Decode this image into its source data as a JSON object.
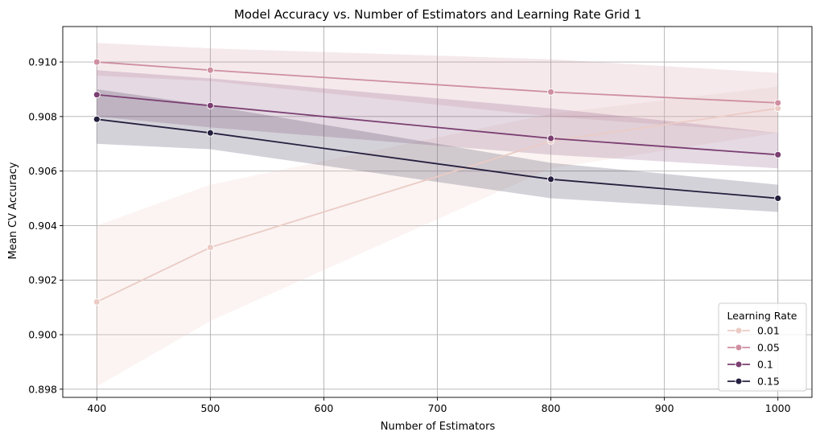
{
  "chart_data": {
    "type": "line",
    "title": "Model Accuracy vs. Number of Estimators and Learning Rate Grid 1",
    "xlabel": "Number of Estimators",
    "ylabel": "Mean CV Accuracy",
    "xlim": [
      370,
      1030
    ],
    "ylim": [
      0.8977,
      0.9113
    ],
    "xticks": [
      400,
      500,
      600,
      700,
      800,
      900,
      1000
    ],
    "yticks": [
      0.898,
      0.9,
      0.902,
      0.904,
      0.906,
      0.908,
      0.91
    ],
    "grid": true,
    "legend_title": "Learning Rate",
    "legend_position": "lower-right",
    "x": [
      400,
      500,
      800,
      1000
    ],
    "series": [
      {
        "name": "0.01",
        "color": "#ebcbc5",
        "values": [
          0.9012,
          0.9032,
          0.9071,
          0.9083
        ],
        "ci_low": [
          0.8981,
          0.9005,
          0.9061,
          0.9074
        ],
        "ci_high": [
          0.904,
          0.9055,
          0.9081,
          0.9091
        ]
      },
      {
        "name": "0.05",
        "color": "#ce8fa0",
        "values": [
          0.91,
          0.9097,
          0.9089,
          0.9085
        ],
        "ci_low": [
          0.9095,
          0.9093,
          0.908,
          0.9074
        ],
        "ci_high": [
          0.9107,
          0.9105,
          0.9101,
          0.9096
        ]
      },
      {
        "name": "0.1",
        "color": "#7b3f72",
        "values": [
          0.9088,
          0.9084,
          0.9072,
          0.9066
        ],
        "ci_low": [
          0.908,
          0.9076,
          0.9066,
          0.9061
        ],
        "ci_high": [
          0.9097,
          0.9094,
          0.9083,
          0.9074
        ]
      },
      {
        "name": "0.15",
        "color": "#26203f",
        "values": [
          0.9079,
          0.9074,
          0.9057,
          0.905
        ],
        "ci_low": [
          0.907,
          0.9068,
          0.905,
          0.9045
        ],
        "ci_high": [
          0.909,
          0.9084,
          0.9063,
          0.9055
        ]
      }
    ]
  }
}
